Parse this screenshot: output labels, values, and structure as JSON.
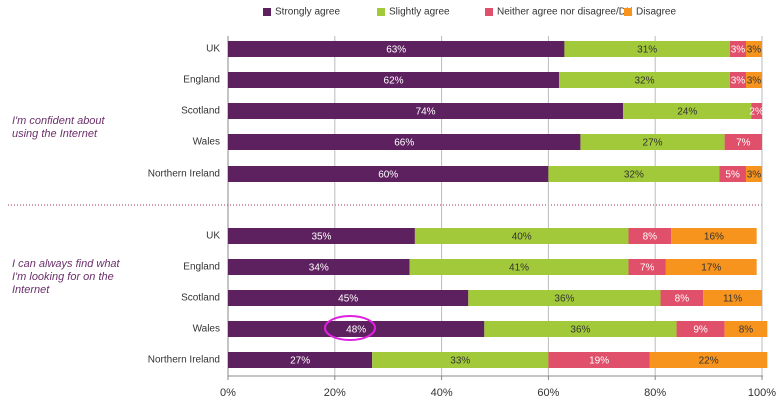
{
  "chart_data": [
    {
      "type": "bar",
      "orientation": "horizontal",
      "stacked": true,
      "title": [
        "I'm confident about",
        "using the Internet"
      ],
      "categories": [
        "UK",
        "England",
        "Scotland",
        "Wales",
        "Northern Ireland"
      ],
      "series": [
        {
          "name": "Strongly agree",
          "color": "#5e2160",
          "values": [
            63,
            62,
            74,
            66,
            60
          ],
          "value_labels": [
            "63%",
            "62%",
            "74%",
            "66%",
            "60%"
          ]
        },
        {
          "name": "Slightly agree",
          "color": "#a2c93a",
          "values": [
            31,
            32,
            24,
            27,
            32
          ],
          "value_labels": [
            "31%",
            "32%",
            "24%",
            "27%",
            "32%"
          ]
        },
        {
          "name": "Neither agree nor disagree/DK",
          "color": "#e0506a",
          "values": [
            3,
            3,
            2,
            7,
            5
          ],
          "value_labels": [
            "3%",
            "3%",
            "2%",
            "7%",
            "5%"
          ]
        },
        {
          "name": "Disagree",
          "color": "#f7941d",
          "values": [
            3,
            3,
            null,
            null,
            3
          ],
          "value_labels": [
            "3%",
            "3%",
            null,
            null,
            "3%"
          ]
        }
      ],
      "xlim": [
        0,
        100
      ]
    },
    {
      "type": "bar",
      "orientation": "horizontal",
      "stacked": true,
      "title": [
        "I can always find what",
        "I'm looking for on the",
        "Internet"
      ],
      "categories": [
        "UK",
        "England",
        "Scotland",
        "Wales",
        "Northern Ireland"
      ],
      "series": [
        {
          "color": "#5e2160",
          "values": [
            35,
            34,
            45,
            48,
            27
          ],
          "value_labels": [
            "35%",
            "34%",
            "45%",
            "48%",
            "27%"
          ]
        },
        {
          "color": "#a2c93a",
          "values": [
            40,
            41,
            36,
            36,
            33
          ],
          "value_labels": [
            "40%",
            "41%",
            "36%",
            "36%",
            "33%"
          ]
        },
        {
          "color": "#e0506a",
          "values": [
            8,
            7,
            8,
            9,
            19
          ],
          "value_labels": [
            "8%",
            "7%",
            "8%",
            "9%",
            "19%"
          ]
        },
        {
          "color": "#f7941d",
          "values": [
            16,
            17,
            11,
            8,
            22
          ],
          "value_labels": [
            "16%",
            "17%",
            "11%",
            "8%",
            "22%"
          ]
        }
      ],
      "xlim": [
        0,
        100
      ],
      "xticks": [
        {
          "value": 0,
          "label": "0%"
        },
        {
          "value": 20,
          "label": "20%"
        },
        {
          "value": 40,
          "label": "40%"
        },
        {
          "value": 60,
          "label": "60%"
        },
        {
          "value": 80,
          "label": "80%"
        },
        {
          "value": 100,
          "label": "100%"
        }
      ],
      "grid": true
    }
  ]
}
